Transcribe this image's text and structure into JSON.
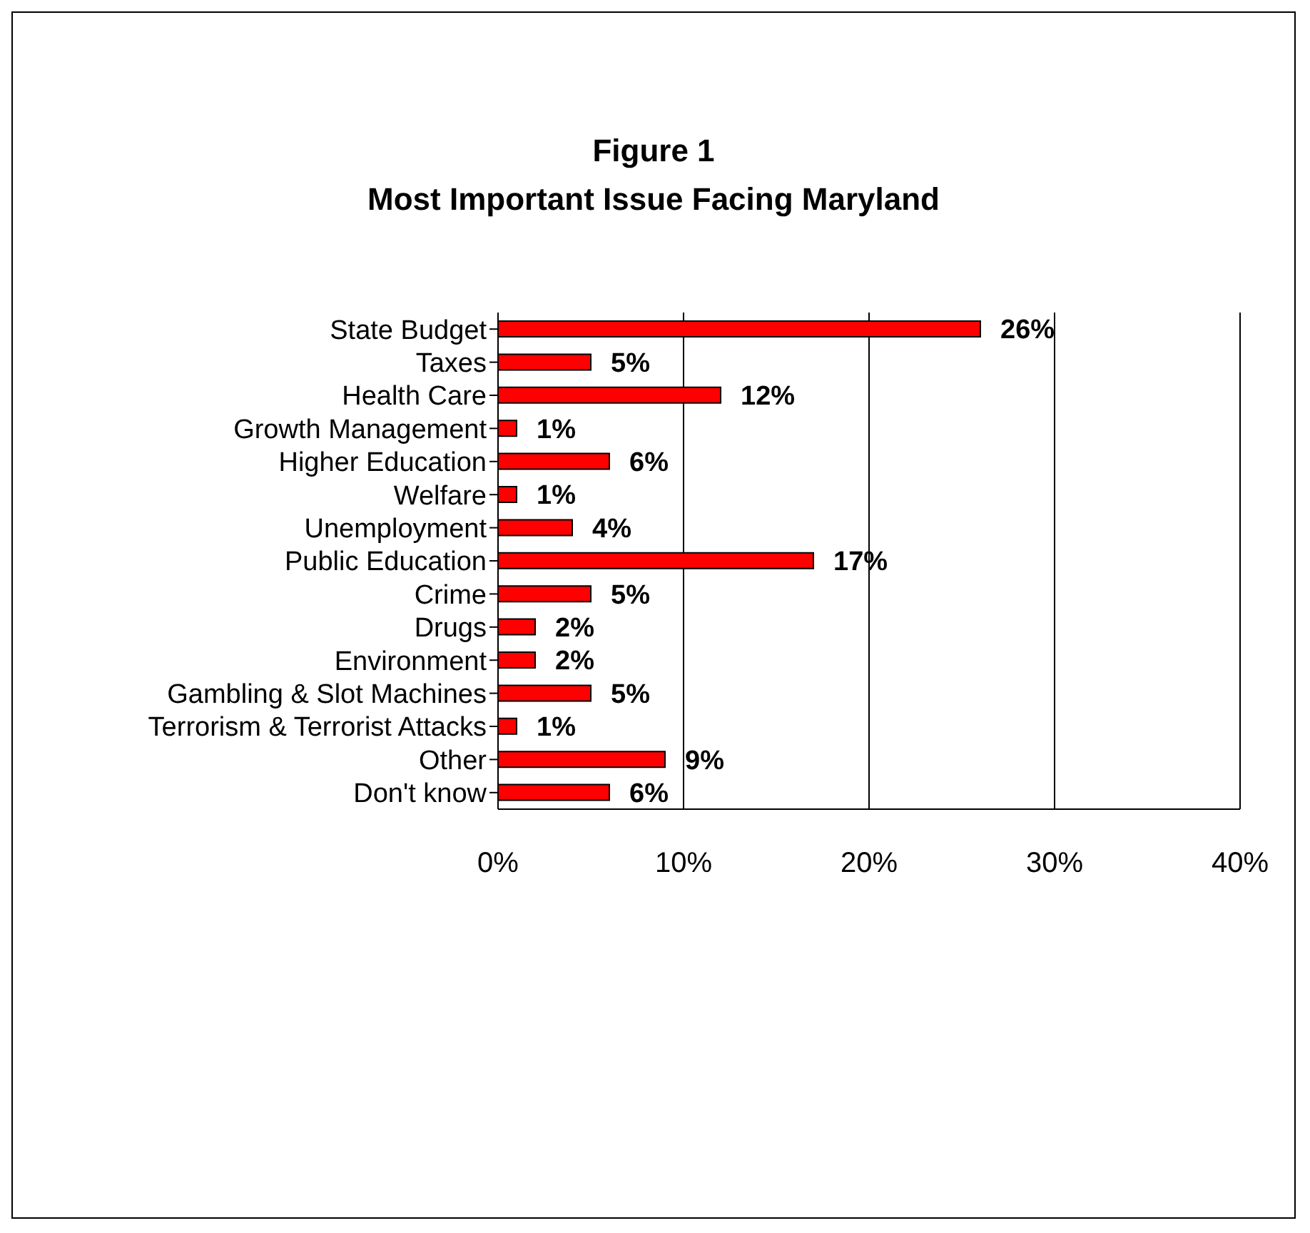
{
  "chart_data": {
    "type": "bar",
    "orientation": "horizontal",
    "title": "Figure 1",
    "subtitle": "Most Important Issue Facing Maryland",
    "categories": [
      "State Budget",
      "Taxes",
      "Health Care",
      "Growth Management",
      "Higher Education",
      "Welfare",
      "Unemployment",
      "Public Education",
      "Crime",
      "Drugs",
      "Environment",
      "Gambling & Slot Machines",
      "Terrorism & Terrorist Attacks",
      "Other",
      "Don't know"
    ],
    "values": [
      26,
      5,
      12,
      1,
      6,
      1,
      4,
      17,
      5,
      2,
      2,
      5,
      1,
      9,
      6
    ],
    "value_labels": [
      "26%",
      "5%",
      "12%",
      "1%",
      "6%",
      "1%",
      "4%",
      "17%",
      "5%",
      "2%",
      "2%",
      "5%",
      "1%",
      "9%",
      "6%"
    ],
    "color": "#ff0000",
    "xlim": [
      0,
      40
    ],
    "xticks": [
      {
        "value": 0,
        "label": "0%"
      },
      {
        "value": 10,
        "label": "10%"
      },
      {
        "value": 20,
        "label": "20%"
      },
      {
        "value": 30,
        "label": "30%"
      },
      {
        "value": 40,
        "label": "40%"
      }
    ],
    "grid": "x"
  }
}
